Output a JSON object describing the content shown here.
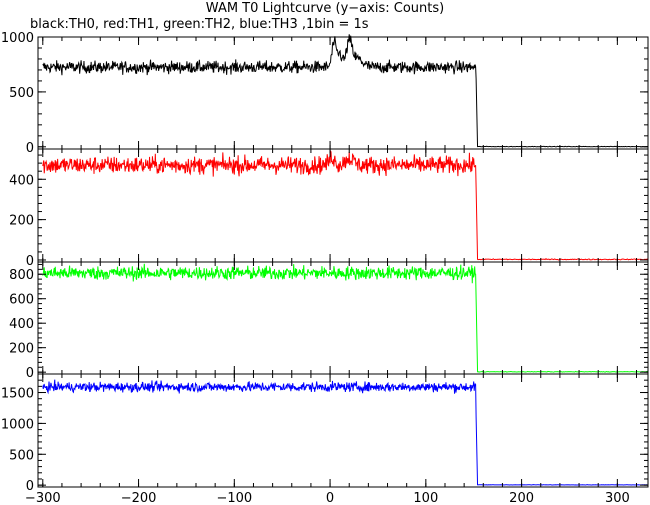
{
  "title": "WAM T0 Lightcurve (y−axis: Counts)",
  "subtitle": "black:TH0,  red:TH1,  green:TH2,  blue:TH3 ,1bin = 1s",
  "chart_data": {
    "type": "line",
    "title": "WAM T0 Lightcurve (y−axis: Counts)",
    "subtitle": "black:TH0,  red:TH1,  green:TH2,  blue:TH3 ,1bin = 1s",
    "xlim": [
      -305,
      332
    ],
    "x_ticks": [
      -300,
      -200,
      -100,
      0,
      100,
      200,
      300
    ],
    "x_tick_labels": [
      "−300",
      "−200",
      "−100",
      "0",
      "100",
      "200",
      "300"
    ],
    "grid": false,
    "panels": [
      {
        "name": "TH0",
        "color": "#000000",
        "ylim": [
          -20,
          1000
        ],
        "y_ticks": [
          0,
          500,
          1000
        ],
        "x_start": -300,
        "x_end": 152,
        "x_drop_end": 154,
        "baseline": 725,
        "noise": 28,
        "drop_to": 620,
        "after": 2,
        "flare": [
          {
            "x": 4,
            "amp": 210,
            "width": 3
          },
          {
            "x": 10,
            "amp": 120,
            "width": 4
          },
          {
            "x": 20,
            "amp": 220,
            "width": 4
          },
          {
            "x": 28,
            "amp": 80,
            "width": 8
          }
        ]
      },
      {
        "name": "TH1",
        "color": "#ff0000",
        "ylim": [
          -10,
          550
        ],
        "y_ticks": [
          0,
          200,
          400
        ],
        "x_start": -300,
        "x_end": 152,
        "x_drop_end": 154,
        "baseline": 470,
        "noise": 22,
        "drop_to": 360,
        "after": 3,
        "flare": [
          {
            "x": 2,
            "amp": 40,
            "width": 4
          },
          {
            "x": 20,
            "amp": 35,
            "width": 6
          }
        ]
      },
      {
        "name": "TH2",
        "color": "#00ff00",
        "ylim": [
          -15,
          900
        ],
        "y_ticks": [
          0,
          200,
          400,
          600,
          800
        ],
        "x_start": -300,
        "x_end": 152,
        "x_drop_end": 154,
        "baseline": 810,
        "noise": 28,
        "drop_to": 600,
        "after": 3,
        "flare": []
      },
      {
        "name": "TH3",
        "color": "#0000ff",
        "ylim": [
          -30,
          1800
        ],
        "y_ticks": [
          0,
          500,
          1000,
          1500
        ],
        "x_start": -300,
        "x_end": 152,
        "x_drop_end": 154,
        "baseline": 1590,
        "noise": 40,
        "drop_to": 1100,
        "after": 5,
        "flare": []
      }
    ]
  }
}
